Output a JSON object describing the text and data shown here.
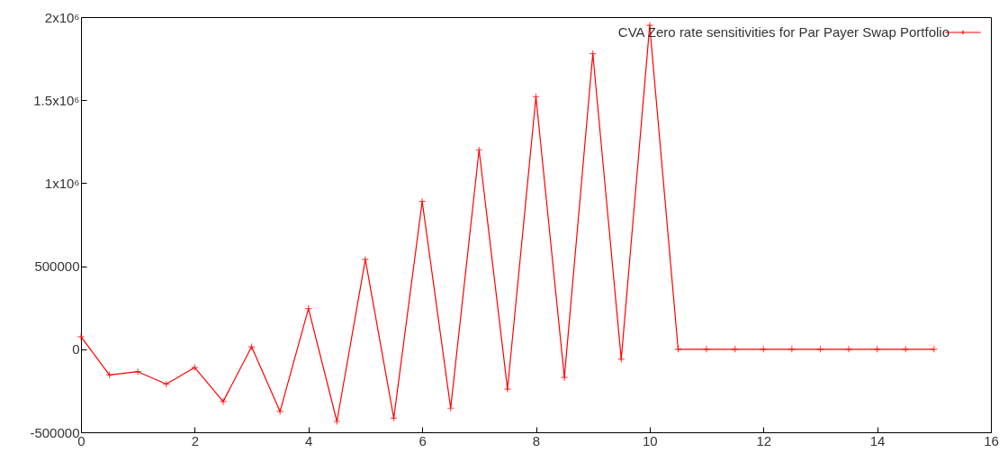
{
  "chart_data": {
    "type": "line",
    "x": [
      0,
      0.5,
      1,
      1.5,
      2,
      2.5,
      3,
      3.5,
      4,
      4.5,
      5,
      5.5,
      6,
      6.5,
      7,
      7.5,
      8,
      8.5,
      9,
      9.5,
      10,
      10.5,
      11,
      11.5,
      12,
      12.5,
      13,
      13.5,
      14,
      14.5,
      15
    ],
    "series": [
      {
        "name": "CVA Zero rate sensitivities for Par Payer Swap Portfolio",
        "color": "#ff0000",
        "values": [
          75000,
          -155000,
          -135000,
          -210000,
          -110000,
          -315000,
          15000,
          -375000,
          245000,
          -435000,
          540000,
          -415000,
          890000,
          -355000,
          1200000,
          -240000,
          1520000,
          -170000,
          1780000,
          -60000,
          1950000,
          0,
          0,
          0,
          0,
          0,
          0,
          0,
          0,
          0,
          0
        ]
      }
    ],
    "xlim": [
      0,
      16
    ],
    "xticks": [
      0,
      2,
      4,
      6,
      8,
      10,
      12,
      14,
      16
    ],
    "ylim": [
      -500000,
      2000000
    ],
    "yticks": [
      -500000,
      0,
      500000,
      {
        "value": 1000000,
        "label": "1x10⁶"
      },
      {
        "value": 1500000,
        "label": "1.5x10⁶"
      },
      {
        "value": 2000000,
        "label": "2x10⁶"
      }
    ],
    "marker": "cross",
    "legend": "top right",
    "grid": false
  }
}
